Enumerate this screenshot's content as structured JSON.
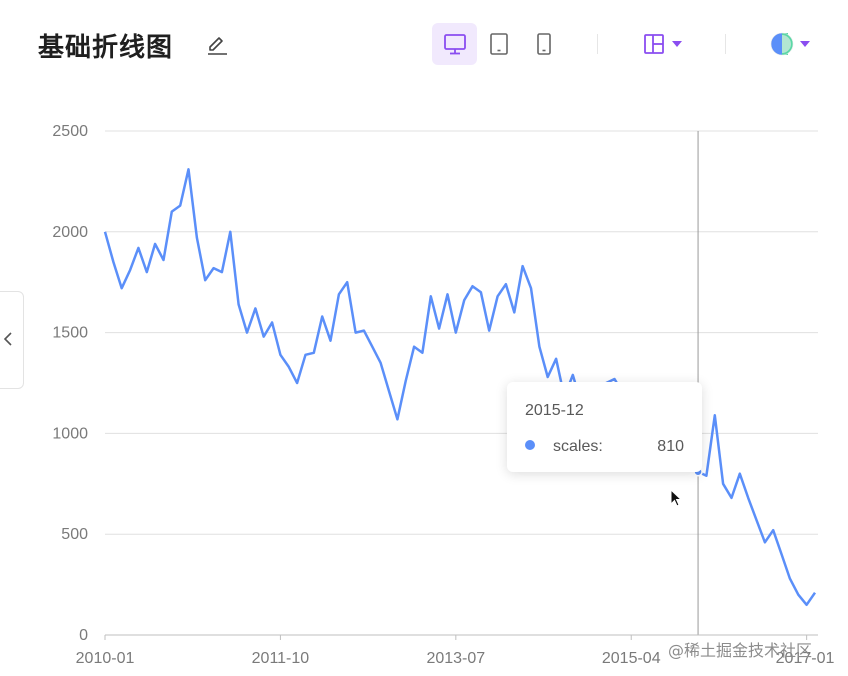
{
  "header": {
    "title": "基础折线图",
    "icons": [
      "pencil-icon",
      "desktop-icon",
      "tablet-icon",
      "phone-icon",
      "layout-grid-icon",
      "caret-down-icon",
      "theme-circle-icon"
    ]
  },
  "colors": {
    "series": "#5b8ff9",
    "accent": "#8a4df0",
    "active_bg": "#f1e9fd",
    "grid": "#e0e0e0"
  },
  "tooltip": {
    "title": "2015-12",
    "name": "scales:",
    "value": "810"
  },
  "watermark": "@稀土掘金技术社区",
  "chart_data": {
    "type": "line",
    "title": "",
    "xlabel": "",
    "ylabel": "",
    "ylim": [
      0,
      2500
    ],
    "yticks": [
      0,
      500,
      1000,
      1500,
      2000,
      2500
    ],
    "xticks": [
      "2010-01",
      "2011-10",
      "2013-07",
      "2015-04",
      "2017-01"
    ],
    "x_first": "2010-01",
    "grid": true,
    "highlight": "2015-12",
    "series": [
      {
        "name": "scales",
        "values": [
          2000,
          1850,
          1720,
          1810,
          1920,
          1800,
          1940,
          1860,
          2100,
          2130,
          2310,
          1970,
          1760,
          1820,
          1800,
          2000,
          1640,
          1500,
          1620,
          1480,
          1550,
          1390,
          1330,
          1250,
          1390,
          1400,
          1580,
          1460,
          1690,
          1750,
          1500,
          1510,
          1430,
          1350,
          1210,
          1070,
          1260,
          1430,
          1400,
          1680,
          1520,
          1690,
          1500,
          1660,
          1730,
          1700,
          1510,
          1680,
          1740,
          1600,
          1830,
          1720,
          1430,
          1280,
          1370,
          1180,
          1290,
          1150,
          1110,
          1160,
          1250,
          1270,
          1200,
          1150,
          1080,
          1050,
          1000,
          980,
          950,
          900,
          890,
          810,
          790,
          1090,
          750,
          680,
          800,
          680,
          570,
          460,
          520,
          400,
          280,
          200,
          150,
          210
        ]
      }
    ]
  }
}
